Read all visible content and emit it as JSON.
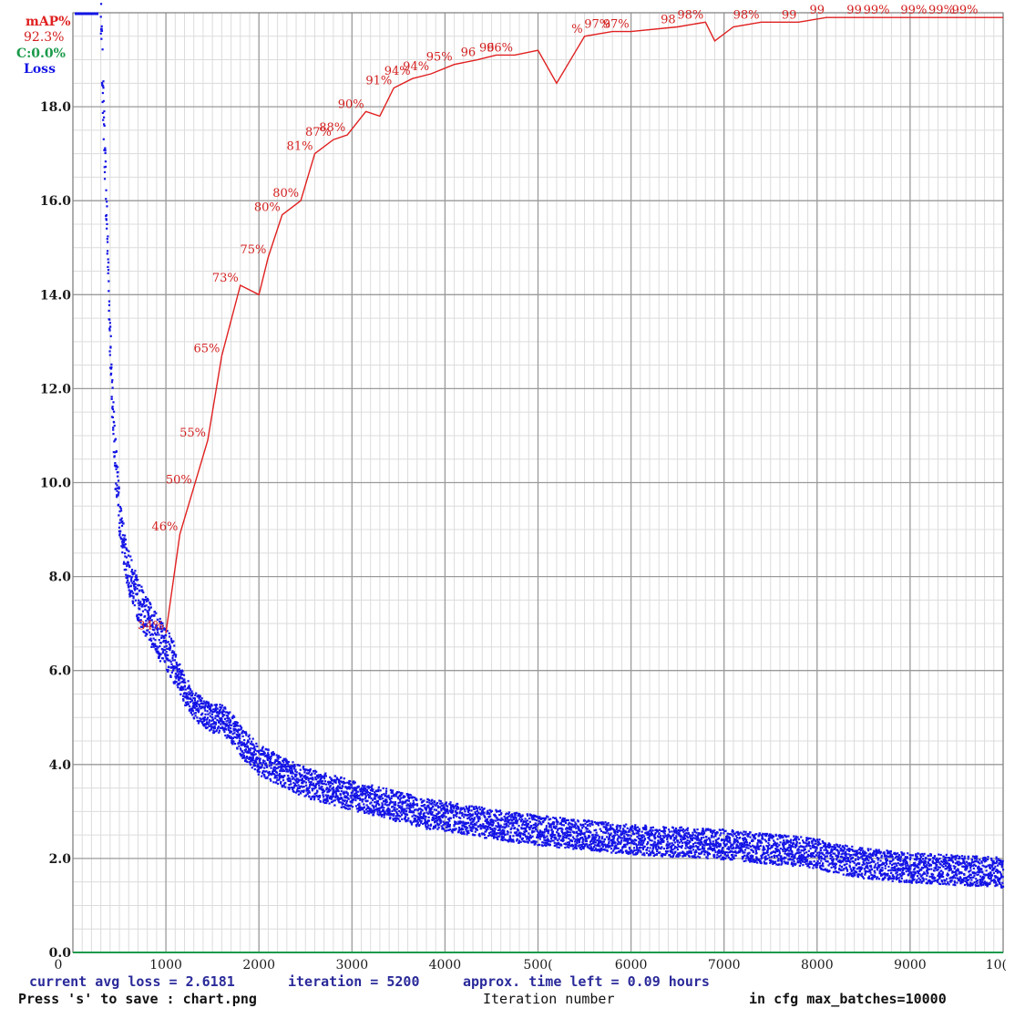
{
  "legend": {
    "map_label": "mAP%",
    "map_value": "92.3%",
    "c_label": "C:0.0%",
    "loss_label": "Loss"
  },
  "footer": {
    "avg_loss": "current avg loss = 2.6181",
    "iteration": "iteration = 5200",
    "time_left": "approx. time left = 0.09 hours",
    "save_hint": "Press 's' to save : chart.png",
    "xlabel": "Iteration number",
    "max_batches": "in cfg max_batches=10000"
  },
  "colors": {
    "loss": "#1414e6",
    "map": "#e02020",
    "c": "#1a9a4a",
    "grid_major": "#9a9a9a",
    "grid_minor": "#dcdcdc"
  },
  "chart_data": {
    "type": "line",
    "x_ticks": [
      "0",
      "1000",
      "2000",
      "3000",
      "4000",
      "500(",
      "6000",
      "7000",
      "8000",
      "9000",
      "10("
    ],
    "y_ticks": [
      "0.0",
      "2.0",
      "4.0",
      "6.0",
      "8.0",
      "10.0",
      "12.0",
      "14.0",
      "16.0",
      "18.0"
    ],
    "xlim": [
      0,
      10000
    ],
    "ylim": [
      0,
      20
    ],
    "grid": true,
    "loss_series": {
      "name": "Loss",
      "x": [
        300,
        320,
        350,
        380,
        400,
        430,
        460,
        500,
        550,
        600,
        650,
        700,
        750,
        800,
        850,
        900,
        950,
        1000,
        1050,
        1100,
        1200,
        1300,
        1400,
        1500,
        1600,
        1700,
        1800,
        1900,
        2000,
        2200,
        2400,
        2600,
        2800,
        3000,
        3200,
        3400,
        3600,
        3800,
        4000,
        4300,
        4600,
        5000,
        5500,
        6000,
        6500,
        7000,
        7500,
        7800,
        8000,
        8200,
        8500,
        9000,
        9500,
        10000
      ],
      "y": [
        19.8,
        18.5,
        16.5,
        14.5,
        13.0,
        11.5,
        10.3,
        9.3,
        8.6,
        8.1,
        7.8,
        7.5,
        7.3,
        7.1,
        6.9,
        6.8,
        6.6,
        6.5,
        6.3,
        6.1,
        5.6,
        5.3,
        5.1,
        5.0,
        4.95,
        4.8,
        4.5,
        4.3,
        4.1,
        3.9,
        3.7,
        3.55,
        3.45,
        3.35,
        3.25,
        3.15,
        3.05,
        2.95,
        2.9,
        2.8,
        2.7,
        2.6,
        2.5,
        2.4,
        2.35,
        2.3,
        2.2,
        2.15,
        2.1,
        2.0,
        1.9,
        1.8,
        1.75,
        1.7
      ]
    },
    "map_series": {
      "name": "mAP%",
      "points": [
        {
          "x": 1000,
          "y": 6.8,
          "label": "34%"
        },
        {
          "x": 1150,
          "y": 8.9,
          "label": "46%"
        },
        {
          "x": 1300,
          "y": 9.9,
          "label": "50%"
        },
        {
          "x": 1450,
          "y": 10.9,
          "label": "55%"
        },
        {
          "x": 1600,
          "y": 12.7,
          "label": "65%"
        },
        {
          "x": 1800,
          "y": 14.2,
          "label": "73%"
        },
        {
          "x": 2000,
          "y": 14.0,
          "label": ""
        },
        {
          "x": 2100,
          "y": 14.8,
          "label": "75%"
        },
        {
          "x": 2250,
          "y": 15.7,
          "label": "80%"
        },
        {
          "x": 2450,
          "y": 16.0,
          "label": "80%"
        },
        {
          "x": 2600,
          "y": 17.0,
          "label": "81%"
        },
        {
          "x": 2800,
          "y": 17.3,
          "label": "87%"
        },
        {
          "x": 2950,
          "y": 17.4,
          "label": "88%"
        },
        {
          "x": 3150,
          "y": 17.9,
          "label": "90%"
        },
        {
          "x": 3300,
          "y": 17.8,
          "label": ""
        },
        {
          "x": 3450,
          "y": 18.4,
          "label": "91%"
        },
        {
          "x": 3650,
          "y": 18.6,
          "label": "94%"
        },
        {
          "x": 3850,
          "y": 18.7,
          "label": "94%"
        },
        {
          "x": 4100,
          "y": 18.9,
          "label": "95%"
        },
        {
          "x": 4350,
          "y": 19.0,
          "label": "96"
        },
        {
          "x": 4550,
          "y": 19.1,
          "label": "96"
        },
        {
          "x": 4750,
          "y": 19.1,
          "label": "96%"
        },
        {
          "x": 5000,
          "y": 19.2,
          "label": ""
        },
        {
          "x": 5200,
          "y": 18.5,
          "label": ""
        },
        {
          "x": 5500,
          "y": 19.5,
          "label": "%"
        },
        {
          "x": 5800,
          "y": 19.6,
          "label": "97%"
        },
        {
          "x": 6000,
          "y": 19.6,
          "label": "97%"
        },
        {
          "x": 6500,
          "y": 19.7,
          "label": "98"
        },
        {
          "x": 6800,
          "y": 19.8,
          "label": "98%"
        },
        {
          "x": 6900,
          "y": 19.4,
          "label": ""
        },
        {
          "x": 7100,
          "y": 19.7,
          "label": ""
        },
        {
          "x": 7400,
          "y": 19.8,
          "label": "98%"
        },
        {
          "x": 7800,
          "y": 19.8,
          "label": "99"
        },
        {
          "x": 8100,
          "y": 19.9,
          "label": "99"
        },
        {
          "x": 8500,
          "y": 19.9,
          "label": "99"
        },
        {
          "x": 8800,
          "y": 19.9,
          "label": "99%"
        },
        {
          "x": 9200,
          "y": 19.9,
          "label": "99%"
        },
        {
          "x": 9500,
          "y": 19.9,
          "label": "99%"
        },
        {
          "x": 9750,
          "y": 19.9,
          "label": "99%"
        },
        {
          "x": 10000,
          "y": 19.9,
          "label": ""
        }
      ]
    },
    "c_series": {
      "name": "C",
      "values": [
        0,
        0
      ]
    }
  }
}
